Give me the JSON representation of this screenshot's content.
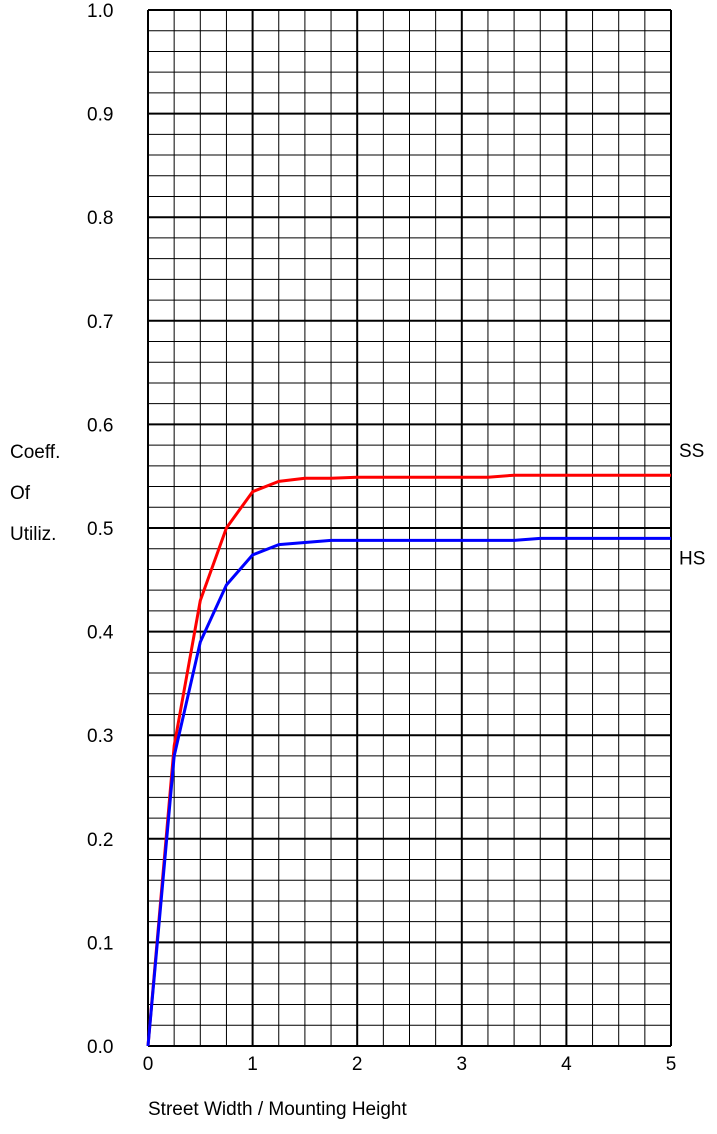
{
  "chart_data": {
    "type": "line",
    "xlabel": "Street Width / Mounting Height",
    "ylabel": [
      "Coeff.",
      "Of",
      "Utiliz."
    ],
    "xlim": [
      0,
      5
    ],
    "ylim": [
      0,
      1
    ],
    "x_ticks": [
      "0",
      "1",
      "2",
      "3",
      "4",
      "5"
    ],
    "y_ticks": [
      "0.0",
      "0.1",
      "0.2",
      "0.3",
      "0.4",
      "0.5",
      "0.6",
      "0.7",
      "0.8",
      "0.9",
      "1.0"
    ],
    "grid": true,
    "series": [
      {
        "name": "SS",
        "color": "#ff0000",
        "x": [
          0,
          0.25,
          0.5,
          0.75,
          1.0,
          1.25,
          1.5,
          1.75,
          2.0,
          2.5,
          3.0,
          3.25,
          3.5,
          4.0,
          4.5,
          5.0
        ],
        "y": [
          0.0,
          0.29,
          0.43,
          0.5,
          0.535,
          0.545,
          0.548,
          0.548,
          0.549,
          0.549,
          0.549,
          0.549,
          0.551,
          0.551,
          0.551,
          0.551
        ]
      },
      {
        "name": "HS",
        "color": "#0000ff",
        "x": [
          0,
          0.25,
          0.5,
          0.75,
          1.0,
          1.25,
          1.5,
          1.75,
          2.0,
          2.5,
          3.0,
          3.25,
          3.5,
          3.75,
          4.0,
          4.5,
          5.0
        ],
        "y": [
          0.0,
          0.28,
          0.39,
          0.445,
          0.474,
          0.484,
          0.486,
          0.488,
          0.488,
          0.488,
          0.488,
          0.488,
          0.488,
          0.49,
          0.49,
          0.49,
          0.49
        ]
      }
    ]
  }
}
